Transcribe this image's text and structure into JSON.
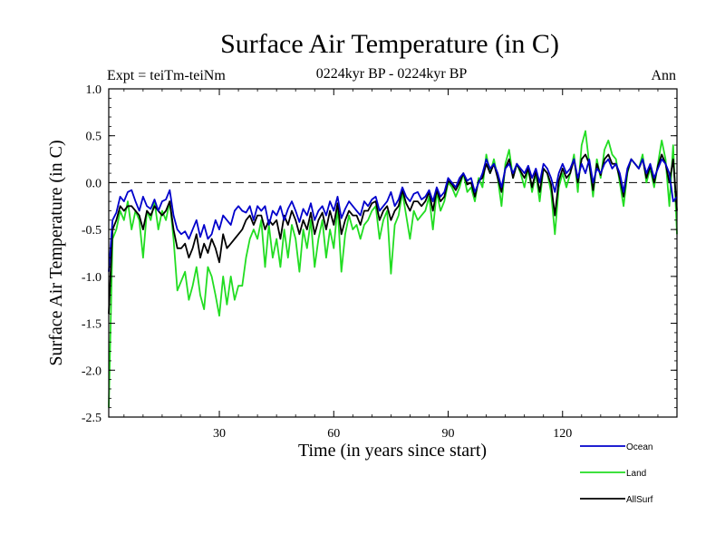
{
  "chart_data": {
    "type": "line",
    "title": "Surface Air Temperature (in C)",
    "subtitle": "0224kyr BP - 0224kyr BP",
    "left_label": "Expt = teiTm-teiNm",
    "right_label": "Ann",
    "xlabel": "Time (in years since start)",
    "ylabel": "Surface Air Temperature (in C)",
    "xlim": [
      1,
      150
    ],
    "ylim": [
      -2.5,
      1.0
    ],
    "xticks": [
      30,
      60,
      90,
      120
    ],
    "yticks": [
      1.0,
      0.5,
      0.0,
      -0.5,
      -1.0,
      -1.5,
      -2.0,
      -2.5
    ],
    "ytick_labels": [
      "1.0",
      "0.5",
      "0.0",
      "-0.5",
      "-1.0",
      "-1.5",
      "-2.0",
      "-2.5"
    ],
    "zero_line": 0.0,
    "legend_position": "bottom-right",
    "series": [
      {
        "name": "Ocean",
        "color": "#0000cc",
        "values": [
          -0.95,
          -0.4,
          -0.32,
          -0.15,
          -0.2,
          -0.1,
          -0.08,
          -0.2,
          -0.3,
          -0.15,
          -0.25,
          -0.28,
          -0.18,
          -0.3,
          -0.2,
          -0.18,
          -0.08,
          -0.35,
          -0.5,
          -0.55,
          -0.52,
          -0.6,
          -0.5,
          -0.4,
          -0.58,
          -0.45,
          -0.6,
          -0.55,
          -0.4,
          -0.5,
          -0.35,
          -0.4,
          -0.45,
          -0.3,
          -0.25,
          -0.3,
          -0.32,
          -0.25,
          -0.4,
          -0.25,
          -0.3,
          -0.25,
          -0.45,
          -0.3,
          -0.35,
          -0.25,
          -0.4,
          -0.28,
          -0.2,
          -0.3,
          -0.42,
          -0.28,
          -0.35,
          -0.22,
          -0.4,
          -0.3,
          -0.25,
          -0.35,
          -0.2,
          -0.3,
          -0.15,
          -0.38,
          -0.28,
          -0.2,
          -0.25,
          -0.3,
          -0.35,
          -0.2,
          -0.25,
          -0.18,
          -0.15,
          -0.3,
          -0.25,
          -0.2,
          -0.1,
          -0.25,
          -0.18,
          -0.05,
          -0.15,
          -0.2,
          -0.12,
          -0.1,
          -0.18,
          -0.15,
          -0.08,
          -0.2,
          -0.05,
          -0.15,
          -0.1,
          0.05,
          0.0,
          -0.05,
          0.05,
          0.1,
          0.02,
          0.05,
          -0.1,
          0.0,
          0.1,
          0.25,
          0.15,
          0.2,
          0.1,
          -0.05,
          0.15,
          0.2,
          0.1,
          0.2,
          0.15,
          0.1,
          0.18,
          0.05,
          0.15,
          0.0,
          0.2,
          0.15,
          0.05,
          -0.1,
          0.1,
          0.2,
          0.1,
          0.15,
          0.25,
          0.05,
          0.2,
          0.1,
          0.25,
          0.0,
          0.15,
          0.1,
          0.2,
          0.25,
          0.15,
          0.2,
          0.1,
          -0.1,
          0.15,
          0.25,
          0.2,
          0.15,
          0.25,
          0.1,
          0.2,
          0.05,
          0.15,
          0.25,
          0.2,
          0.1,
          -0.2,
          -0.15
        ]
      },
      {
        "name": "Land",
        "color": "#22dd22",
        "values": [
          -2.4,
          -0.6,
          -0.5,
          -0.3,
          -0.4,
          -0.2,
          -0.5,
          -0.3,
          -0.4,
          -0.8,
          -0.3,
          -0.4,
          -0.2,
          -0.5,
          -0.3,
          -0.4,
          -0.2,
          -0.6,
          -1.15,
          -1.05,
          -0.95,
          -1.25,
          -1.1,
          -0.9,
          -1.2,
          -1.35,
          -0.9,
          -1.0,
          -1.2,
          -1.42,
          -1.0,
          -1.3,
          -1.0,
          -1.25,
          -1.1,
          -1.1,
          -0.8,
          -0.6,
          -0.5,
          -0.6,
          -0.4,
          -0.9,
          -0.45,
          -0.8,
          -0.6,
          -0.9,
          -0.5,
          -0.8,
          -0.45,
          -0.6,
          -0.95,
          -0.5,
          -0.7,
          -0.4,
          -0.9,
          -0.6,
          -0.4,
          -0.8,
          -0.5,
          -0.7,
          -0.25,
          -0.95,
          -0.55,
          -0.35,
          -0.5,
          -0.45,
          -0.6,
          -0.45,
          -0.4,
          -0.3,
          -0.25,
          -0.6,
          -0.4,
          -0.3,
          -0.97,
          -0.45,
          -0.35,
          -0.1,
          -0.35,
          -0.6,
          -0.3,
          -0.4,
          -0.35,
          -0.3,
          -0.15,
          -0.5,
          -0.1,
          -0.3,
          -0.2,
          0.0,
          -0.05,
          -0.15,
          -0.05,
          0.1,
          -0.1,
          -0.05,
          -0.2,
          0.05,
          -0.05,
          0.3,
          0.1,
          0.25,
          0.05,
          -0.25,
          0.2,
          0.35,
          0.05,
          0.2,
          0.1,
          -0.05,
          0.15,
          -0.1,
          0.1,
          -0.2,
          0.15,
          0.1,
          -0.1,
          -0.55,
          -0.05,
          0.1,
          -0.05,
          0.1,
          0.3,
          -0.1,
          0.4,
          0.55,
          0.2,
          -0.15,
          0.25,
          0.05,
          0.35,
          0.45,
          0.3,
          0.25,
          0.0,
          -0.25,
          0.1,
          0.25,
          0.2,
          0.15,
          0.3,
          0.0,
          0.15,
          -0.05,
          0.2,
          0.45,
          0.25,
          -0.25,
          0.4,
          -0.55
        ]
      },
      {
        "name": "AllSurf",
        "color": "#000000",
        "values": [
          -1.4,
          -0.5,
          -0.4,
          -0.25,
          -0.3,
          -0.25,
          -0.25,
          -0.3,
          -0.35,
          -0.5,
          -0.3,
          -0.35,
          -0.25,
          -0.3,
          -0.35,
          -0.3,
          -0.2,
          -0.5,
          -0.7,
          -0.7,
          -0.65,
          -0.8,
          -0.7,
          -0.55,
          -0.8,
          -0.65,
          -0.75,
          -0.6,
          -0.7,
          -0.85,
          -0.55,
          -0.7,
          -0.65,
          -0.6,
          -0.55,
          -0.5,
          -0.4,
          -0.35,
          -0.45,
          -0.35,
          -0.35,
          -0.5,
          -0.4,
          -0.45,
          -0.4,
          -0.6,
          -0.35,
          -0.45,
          -0.3,
          -0.4,
          -0.55,
          -0.4,
          -0.5,
          -0.32,
          -0.55,
          -0.4,
          -0.32,
          -0.5,
          -0.3,
          -0.45,
          -0.22,
          -0.55,
          -0.4,
          -0.3,
          -0.35,
          -0.35,
          -0.45,
          -0.3,
          -0.3,
          -0.22,
          -0.2,
          -0.4,
          -0.3,
          -0.25,
          -0.4,
          -0.3,
          -0.25,
          -0.08,
          -0.22,
          -0.3,
          -0.2,
          -0.2,
          -0.25,
          -0.2,
          -0.1,
          -0.3,
          -0.08,
          -0.2,
          -0.15,
          0.02,
          -0.02,
          -0.08,
          0.0,
          0.1,
          -0.02,
          0.0,
          -0.15,
          0.02,
          0.05,
          0.2,
          0.1,
          0.2,
          0.05,
          -0.1,
          0.15,
          0.25,
          0.05,
          0.2,
          0.12,
          0.05,
          0.15,
          -0.05,
          0.12,
          -0.1,
          0.15,
          0.1,
          -0.02,
          -0.35,
          0.02,
          0.15,
          0.05,
          0.1,
          0.25,
          0.0,
          0.25,
          0.3,
          0.2,
          -0.08,
          0.2,
          0.08,
          0.25,
          0.3,
          0.2,
          0.2,
          0.05,
          -0.15,
          0.12,
          0.25,
          0.2,
          0.15,
          0.25,
          0.05,
          0.18,
          0.0,
          0.18,
          0.3,
          0.2,
          0.0,
          0.25,
          -0.3
        ]
      }
    ]
  }
}
